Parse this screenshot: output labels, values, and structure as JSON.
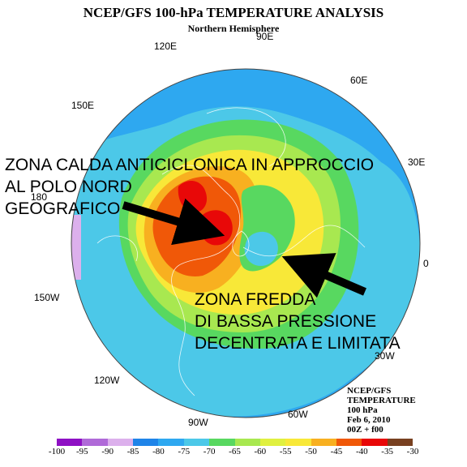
{
  "title": "NCEP/GFS 100-hPa TEMPERATURE ANALYSIS",
  "subtitle": "Northern Hemisphere",
  "longitude_labels": [
    "90E",
    "60E",
    "30E",
    "0",
    "30W",
    "60W",
    "90W",
    "120W",
    "150W",
    "180",
    "150E",
    "120E"
  ],
  "annotations": {
    "warm_zone": [
      "ZONA CALDA ANTICICLONICA IN APPROCCIO",
      "AL POLO NORD",
      "GEOGRAFICO"
    ],
    "cold_zone": [
      "ZONA FREDDA",
      "DI BASSA PRESSIONE",
      "DECENTRATA E LIMITATA"
    ]
  },
  "info_box": [
    "NCEP/GFS",
    "TEMPERATURE",
    "100 hPa",
    "Feb 6, 2010",
    "00Z + f00"
  ],
  "colorbar": {
    "labels": [
      "-100",
      "-95",
      "-90",
      "-85",
      "-80",
      "-75",
      "-70",
      "-65",
      "-60",
      "-55",
      "-50",
      "-45",
      "-40",
      "-35",
      "-30"
    ],
    "colors": [
      "#8e10c4",
      "#b06ad8",
      "#dcb0ec",
      "#1f84e8",
      "#2ea8f0",
      "#4cc8e8",
      "#58d860",
      "#a8e850",
      "#e0f040",
      "#f8e838",
      "#f8b020",
      "#f05808",
      "#e80808",
      "#784020"
    ]
  },
  "palette": {
    "violet": "#dcb0ec",
    "deep_blue": "#1f84e8",
    "blue": "#2ea8f0",
    "light_blue": "#4cc8e8",
    "green": "#58d860",
    "light_green": "#a8e850",
    "yellow_green": "#e0f040",
    "yellow": "#f8e838",
    "orange": "#f8b020",
    "dark_orange": "#f05808",
    "red": "#e80808",
    "arrow": "#000000"
  }
}
